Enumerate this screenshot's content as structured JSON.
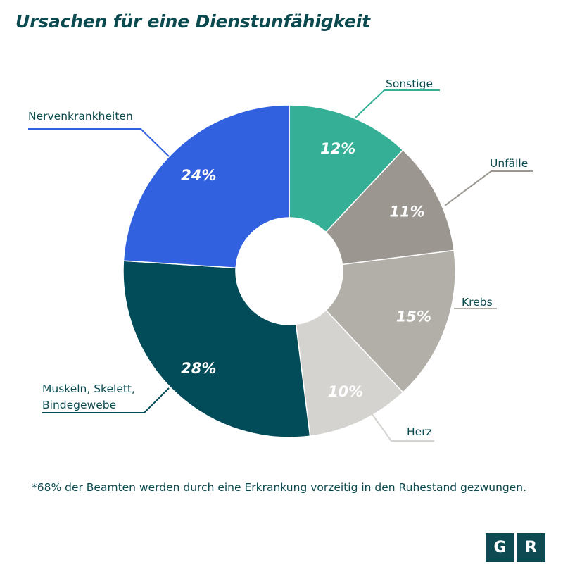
{
  "title": "Ursachen für eine Dienstunfähigkeit",
  "footnote": "*68% der Beamten werden durch eine Erkrankung vorzeitig in den Ruhestand gezwungen.",
  "logo": {
    "left": "G",
    "right": "R"
  },
  "chart_data": {
    "type": "pie",
    "subtype": "donut",
    "title": "Ursachen für eine Dienstunfähigkeit",
    "unit": "%",
    "slices": [
      {
        "label": "Sonstige",
        "value": 12,
        "display": "12%",
        "color": "#35b096",
        "label_color": "#ffffff"
      },
      {
        "label": "Unfälle",
        "value": 11,
        "display": "11%",
        "color": "#9b9790",
        "label_color": "#ffffff"
      },
      {
        "label": "Krebs",
        "value": 15,
        "display": "15%",
        "color": "#b2aea8",
        "label_color": "#ffffff"
      },
      {
        "label": "Herz",
        "value": 10,
        "display": "10%",
        "color": "#d5d3d0",
        "label_color": "#ffffff"
      },
      {
        "label": "Muskeln, Skelett, Bindegewebe",
        "value": 28,
        "display": "28%",
        "color": "#024b58",
        "label_color": "#ffffff"
      },
      {
        "label": "Nervenkrankheiten",
        "value": 24,
        "display": "24%",
        "color": "#3261e0",
        "label_color": "#ffffff"
      }
    ],
    "legend": "callout-labels",
    "colors": {
      "title": "#0b4a4f",
      "callout_text": "#0b4a4f"
    }
  }
}
